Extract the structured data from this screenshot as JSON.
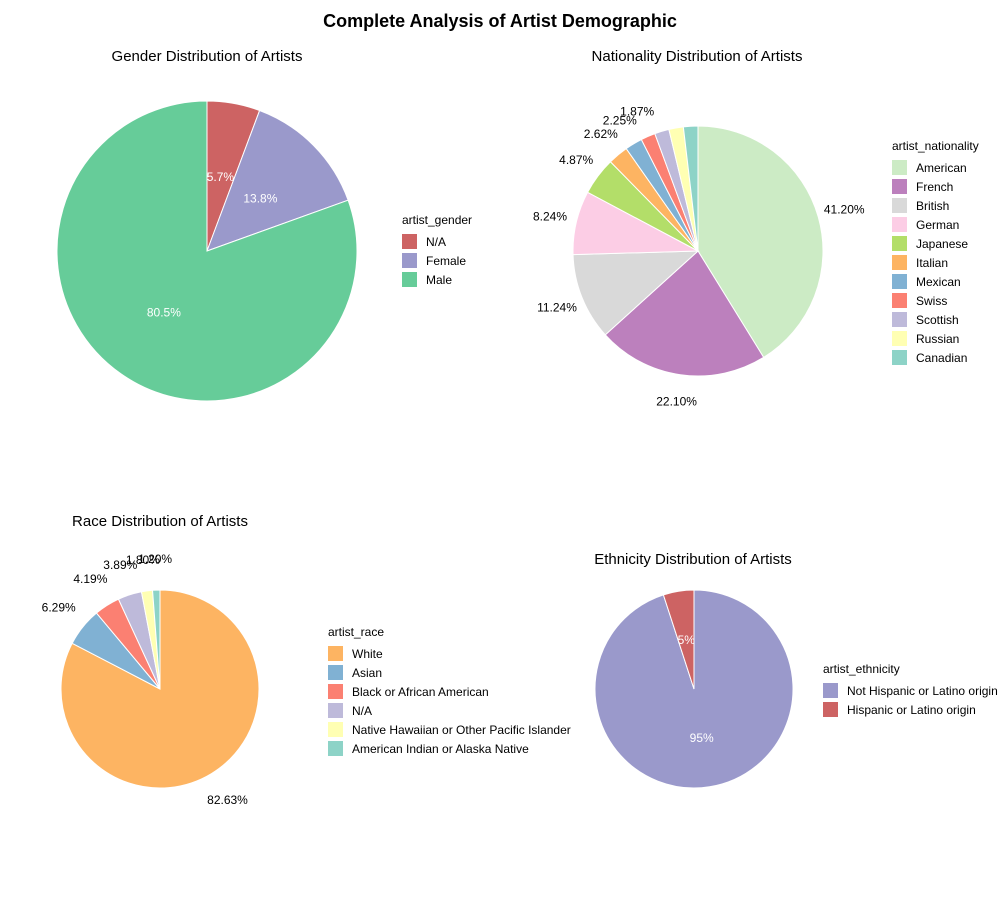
{
  "page": {
    "title": "Complete Analysis of Artist Demographic"
  },
  "chart_data": [
    {
      "type": "pie",
      "title": "Gender Distribution of Artists",
      "legend_title": "artist_gender",
      "legend_position": "right",
      "label_style": "inside",
      "slices": [
        {
          "name": "N/A",
          "value": 5.7,
          "label": "5.7%",
          "color": "#CD6363"
        },
        {
          "name": "Female",
          "value": 13.8,
          "label": "13.8%",
          "color": "#9A99CB"
        },
        {
          "name": "Male",
          "value": 80.5,
          "label": "80.5%",
          "color": "#66CC99"
        }
      ]
    },
    {
      "type": "pie",
      "title": "Nationality Distribution of Artists",
      "legend_title": "artist_nationality",
      "legend_position": "right",
      "label_style": "outside",
      "slices": [
        {
          "name": "American",
          "value": 41.2,
          "label": "41.20%",
          "color": "#CCEBC5"
        },
        {
          "name": "French",
          "value": 22.1,
          "label": "22.10%",
          "color": "#BC80BD"
        },
        {
          "name": "British",
          "value": 11.24,
          "label": "11.24%",
          "color": "#D9D9D9"
        },
        {
          "name": "German",
          "value": 8.24,
          "label": "8.24%",
          "color": "#FCCDE5"
        },
        {
          "name": "Japanese",
          "value": 4.87,
          "label": "4.87%",
          "color": "#B3DE69"
        },
        {
          "name": "Italian",
          "value": 2.62,
          "label": "2.62%",
          "color": "#FDB462"
        },
        {
          "name": "Mexican",
          "value": 2.25,
          "label": "2.25%",
          "color": "#80B1D3"
        },
        {
          "name": "Swiss",
          "value": 1.87,
          "label": "1.87%",
          "color": "#FB8072"
        },
        {
          "name": "Scottish",
          "value": 1.87,
          "label": "",
          "color": "#BEBADA"
        },
        {
          "name": "Russian",
          "value": 1.87,
          "label": "",
          "color": "#FFFFB3"
        },
        {
          "name": "Canadian",
          "value": 1.87,
          "label": "",
          "color": "#8DD3C7"
        }
      ]
    },
    {
      "type": "pie",
      "title": "Race Distribution of Artists",
      "legend_title": "artist_race",
      "legend_position": "right",
      "label_style": "outside",
      "slices": [
        {
          "name": "White",
          "value": 82.63,
          "label": "82.63%",
          "color": "#FDB462"
        },
        {
          "name": "Asian",
          "value": 6.29,
          "label": "6.29%",
          "color": "#80B1D3"
        },
        {
          "name": "Black or African American",
          "value": 4.19,
          "label": "4.19%",
          "color": "#FB8072"
        },
        {
          "name": "N/A",
          "value": 3.89,
          "label": "3.89%",
          "color": "#BEBADA"
        },
        {
          "name": "Native Hawaiian or Other Pacific Islander",
          "value": 1.8,
          "label": "1.80%",
          "color": "#FFFFB3"
        },
        {
          "name": "American Indian or Alaska Native",
          "value": 1.2,
          "label": "1.20%",
          "color": "#8DD3C7"
        }
      ]
    },
    {
      "type": "pie",
      "title": "Ethnicity Distribution of Artists",
      "legend_title": "artist_ethnicity",
      "legend_position": "right",
      "label_style": "inside",
      "slices": [
        {
          "name": "Not Hispanic or Latino origin",
          "value": 95,
          "label": "95%",
          "color": "#9A99CB"
        },
        {
          "name": "Hispanic or Latino origin",
          "value": 5,
          "label": "5%",
          "color": "#CD6363"
        }
      ]
    }
  ]
}
